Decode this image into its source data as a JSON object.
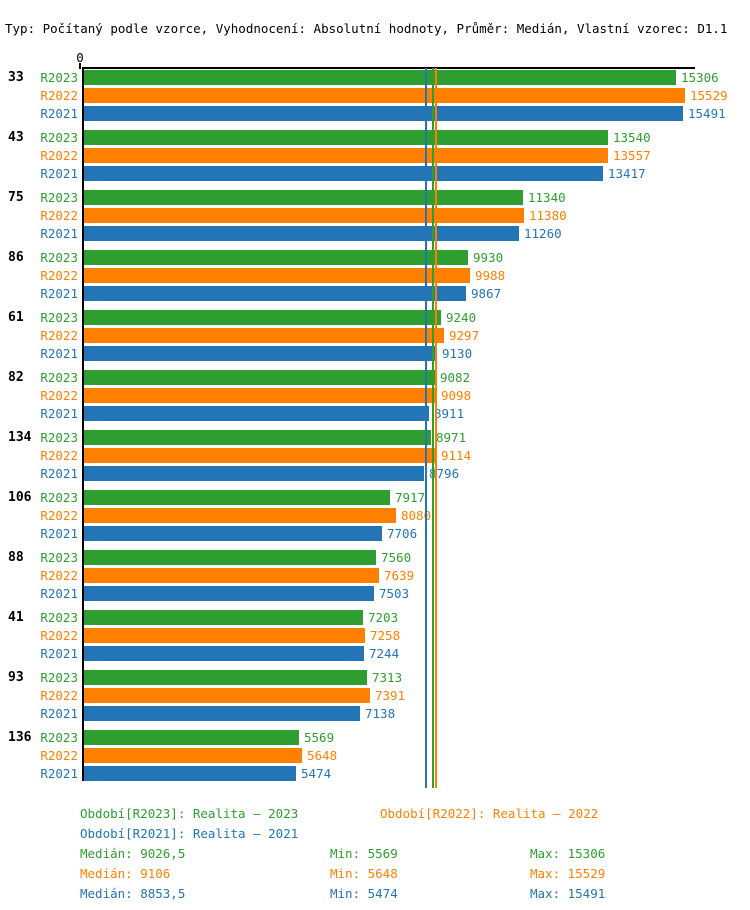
{
  "title": "Typ: Počítaný podle vzorce, Vyhodnocení: Absolutní hodnoty, Průměr: Medián, Vlastní vzorec: D1.1",
  "axis": {
    "zero_label": "0"
  },
  "colors": {
    "r2023_green": "#2E9E30",
    "r2022_orange": "#FF8000",
    "r2021_blue": "#2475B5",
    "axis_black": "#000000",
    "background": "#FFFFFF"
  },
  "chart_data": {
    "type": "bar",
    "orientation": "horizontal",
    "title": "",
    "xlabel": "",
    "ylabel": "",
    "xlim": [
      0,
      15850
    ],
    "grid": false,
    "value_labels": true,
    "legend_position": "bottom",
    "categories": [
      "33",
      "43",
      "75",
      "86",
      "61",
      "82",
      "134",
      "106",
      "88",
      "41",
      "93",
      "136"
    ],
    "series": [
      {
        "name": "R2023",
        "color": "#2E9E30",
        "values": [
          15306,
          13540,
          11340,
          9930,
          9240,
          9082,
          8971,
          7917,
          7560,
          7203,
          7313,
          5569
        ],
        "median": 9026.5,
        "min": 5569,
        "max": 15306
      },
      {
        "name": "R2022",
        "color": "#FF8000",
        "values": [
          15529,
          13557,
          11380,
          9988,
          9297,
          9098,
          9114,
          8080,
          7639,
          7258,
          7391,
          5648
        ],
        "median": 9106,
        "min": 5648,
        "max": 15529
      },
      {
        "name": "R2021",
        "color": "#2475B5",
        "values": [
          15491,
          13417,
          11260,
          9867,
          9130,
          8911,
          8796,
          7706,
          7503,
          7244,
          7138,
          5474
        ],
        "median": 8853.5,
        "min": 5474,
        "max": 15491
      }
    ]
  },
  "legend": {
    "items": [
      {
        "id": "R2023",
        "label": "Období[R2023]: Realita – 2023",
        "color": "#2E9E30"
      },
      {
        "id": "R2022",
        "label": "Období[R2022]: Realita – 2022",
        "color": "#FF8000"
      },
      {
        "id": "R2021",
        "label": "Období[R2021]: Realita – 2021",
        "color": "#2475B5"
      }
    ]
  },
  "stats": [
    {
      "series": "R2023",
      "median": "Medián: 9026,5",
      "min": "Min: 5569",
      "max": "Max: 15306",
      "color": "#2E9E30"
    },
    {
      "series": "R2022",
      "median": "Medián: 9106",
      "min": "Min: 5648",
      "max": "Max: 15529",
      "color": "#FF8000"
    },
    {
      "series": "R2021",
      "median": "Medián: 8853,5",
      "min": "Min: 5474",
      "max": "Max: 15491",
      "color": "#2475B5"
    }
  ]
}
